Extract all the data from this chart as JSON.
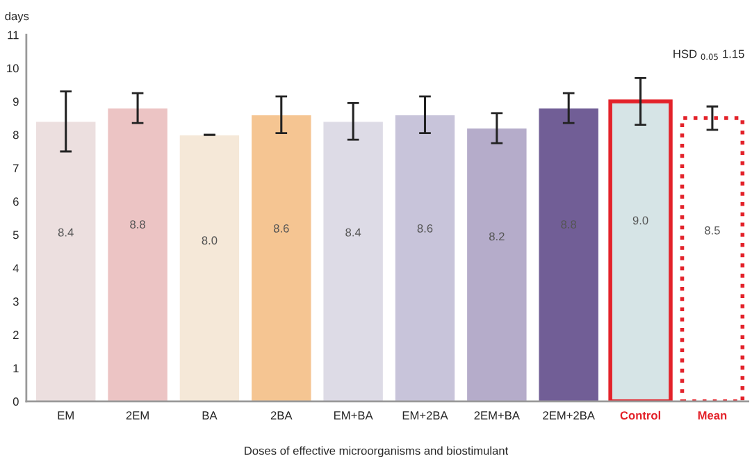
{
  "chart_data": {
    "type": "bar",
    "ylabel": "days",
    "xlabel": "Doses of effective microorganisms and biostimulant",
    "categories": [
      "EM",
      "2EM",
      "BA",
      "2BA",
      "EM+BA",
      "EM+2BA",
      "2EM+BA",
      "2EM+2BA",
      "Control",
      "Mean"
    ],
    "series": [
      {
        "colors": [
          "#ecdfdf",
          "#ecc4c4",
          "#f5e8d8",
          "#f5c592",
          "#dddbe6",
          "#c8c4da",
          "#b5acca",
          "#715e96",
          null,
          null
        ],
        "values": [
          8.4,
          8.8,
          8.0,
          8.6,
          8.4,
          8.6,
          8.2,
          8.8,
          null,
          null
        ],
        "errors": [
          0.9,
          0.45,
          0,
          0.55,
          0.55,
          0.55,
          0.45,
          0.45,
          null,
          null
        ],
        "value_labels": [
          "8.4",
          "8.8",
          "8.0",
          "8.6",
          "8.4",
          "8.6",
          "8.2",
          "8.8",
          null,
          null
        ]
      },
      {
        "color": "#e3222a",
        "colors": [
          null,
          null,
          null,
          null,
          null,
          null,
          null,
          null,
          "#d6e4e6",
          null
        ],
        "line_style": "solid",
        "values": [
          null,
          null,
          null,
          null,
          null,
          null,
          null,
          null,
          9.0,
          null
        ],
        "errors": [
          null,
          null,
          null,
          null,
          null,
          null,
          null,
          null,
          0.7,
          null
        ],
        "value_labels": [
          null,
          null,
          null,
          null,
          null,
          null,
          null,
          null,
          "9.0",
          null
        ]
      },
      {
        "color": "#e3222a",
        "colors": [
          null,
          null,
          null,
          null,
          null,
          null,
          null,
          null,
          null,
          "#ffffff"
        ],
        "line_style": "dotted",
        "values": [
          null,
          null,
          null,
          null,
          null,
          null,
          null,
          null,
          null,
          8.5
        ],
        "errors": [
          null,
          null,
          null,
          null,
          null,
          null,
          null,
          null,
          null,
          0.35
        ],
        "value_labels": [
          null,
          null,
          null,
          null,
          null,
          null,
          null,
          null,
          null,
          "8.5"
        ]
      }
    ],
    "ylim": [
      0,
      11
    ],
    "yticks": [
      0,
      1,
      2,
      3,
      4,
      5,
      6,
      7,
      8,
      9,
      10,
      11
    ],
    "grid": false,
    "legend": false,
    "annotations": [
      "HSD $_{0.05}$ 1.15"
    ]
  }
}
